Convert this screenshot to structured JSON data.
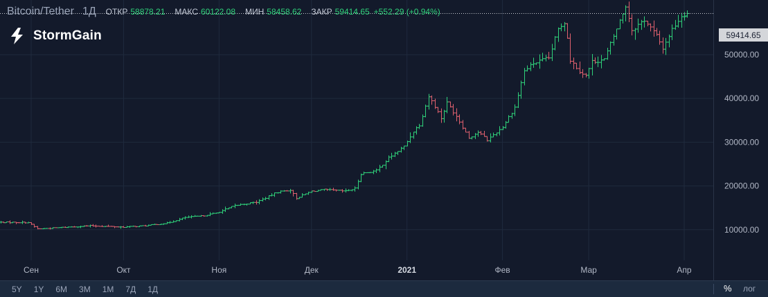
{
  "header": {
    "symbol": "Bitcoin/Tether",
    "interval": "1Д",
    "open_label": "ОТКР",
    "open_value": "58878.21",
    "high_label": "МАКС",
    "high_value": "60122.08",
    "low_label": "МИН",
    "low_value": "58458.62",
    "close_label": "ЗАКР",
    "close_value": "59414.65",
    "change": "+552.29 (+0.94%)"
  },
  "logo": {
    "text": "StormGain",
    "icon": "stormgain-lightning-logo"
  },
  "colors": {
    "up": "#2fd17a",
    "down": "#e0606e",
    "background": "#131a2b",
    "grid": "#1f2a3d",
    "text": "#b2b8c6"
  },
  "last_price_label": "59414.65",
  "bottom_bar": {
    "ranges": [
      "5Y",
      "1Y",
      "6M",
      "3M",
      "1M",
      "7Д",
      "1Д"
    ],
    "percent_label": "%",
    "log_label": "лог"
  },
  "chart_data": {
    "type": "ohlc",
    "title": "Bitcoin/Tether",
    "xlabel": "",
    "ylabel": "",
    "y_axis_position": "right",
    "ylim": [
      3000,
      62500
    ],
    "y_ticks": [
      "10000.00",
      "20000.00",
      "30000.00",
      "40000.00",
      "50000.00"
    ],
    "x_ticks": [
      {
        "label": "Сен",
        "bold": false
      },
      {
        "label": "Окт",
        "bold": false
      },
      {
        "label": "Ноя",
        "bold": false
      },
      {
        "label": "Дек",
        "bold": false
      },
      {
        "label": "2021",
        "bold": true
      },
      {
        "label": "Фев",
        "bold": false
      },
      {
        "label": "Мар",
        "bold": false
      },
      {
        "label": "Апр",
        "bold": false
      }
    ],
    "grid": true,
    "last_price": 59414.65,
    "closes_anchor_points": [
      [
        "2020-08-21",
        11700
      ],
      [
        "2020-08-31",
        11650
      ],
      [
        "2020-09-03",
        10200
      ],
      [
        "2020-09-05",
        10250
      ],
      [
        "2020-09-20",
        10900
      ],
      [
        "2020-10-01",
        10600
      ],
      [
        "2020-10-08",
        10900
      ],
      [
        "2020-10-15",
        11500
      ],
      [
        "2020-10-21",
        12800
      ],
      [
        "2020-10-26",
        13100
      ],
      [
        "2020-10-31",
        13800
      ],
      [
        "2020-11-06",
        15500
      ],
      [
        "2020-11-13",
        16300
      ],
      [
        "2020-11-20",
        18600
      ],
      [
        "2020-11-24",
        19100
      ],
      [
        "2020-11-26",
        17200
      ],
      [
        "2020-12-01",
        18800
      ],
      [
        "2020-12-05",
        19100
      ],
      [
        "2020-12-12",
        18800
      ],
      [
        "2020-12-15",
        19400
      ],
      [
        "2020-12-17",
        22800
      ],
      [
        "2020-12-22",
        23500
      ],
      [
        "2020-12-26",
        26400
      ],
      [
        "2020-12-31",
        29000
      ],
      [
        "2021-01-03",
        32500
      ],
      [
        "2021-01-05",
        34000
      ],
      [
        "2021-01-08",
        40500
      ],
      [
        "2021-01-10",
        38200
      ],
      [
        "2021-01-12",
        35500
      ],
      [
        "2021-01-14",
        39000
      ],
      [
        "2021-01-17",
        36000
      ],
      [
        "2021-01-21",
        31000
      ],
      [
        "2021-01-24",
        32300
      ],
      [
        "2021-01-27",
        30500
      ],
      [
        "2021-02-01",
        33500
      ],
      [
        "2021-02-05",
        38000
      ],
      [
        "2021-02-08",
        46300
      ],
      [
        "2021-02-11",
        48000
      ],
      [
        "2021-02-16",
        49200
      ],
      [
        "2021-02-19",
        55800
      ],
      [
        "2021-02-21",
        57500
      ],
      [
        "2021-02-22",
        54000
      ],
      [
        "2021-02-23",
        48800
      ],
      [
        "2021-02-26",
        46300
      ],
      [
        "2021-02-28",
        45200
      ],
      [
        "2021-03-02",
        48400
      ],
      [
        "2021-03-06",
        48900
      ],
      [
        "2021-03-09",
        54200
      ],
      [
        "2021-03-13",
        61200
      ],
      [
        "2021-03-15",
        55700
      ],
      [
        "2021-03-19",
        58000
      ],
      [
        "2021-03-23",
        54300
      ],
      [
        "2021-03-25",
        51500
      ],
      [
        "2021-03-28",
        55800
      ],
      [
        "2021-03-31",
        58900
      ],
      [
        "2021-04-02",
        59414.65
      ]
    ]
  }
}
